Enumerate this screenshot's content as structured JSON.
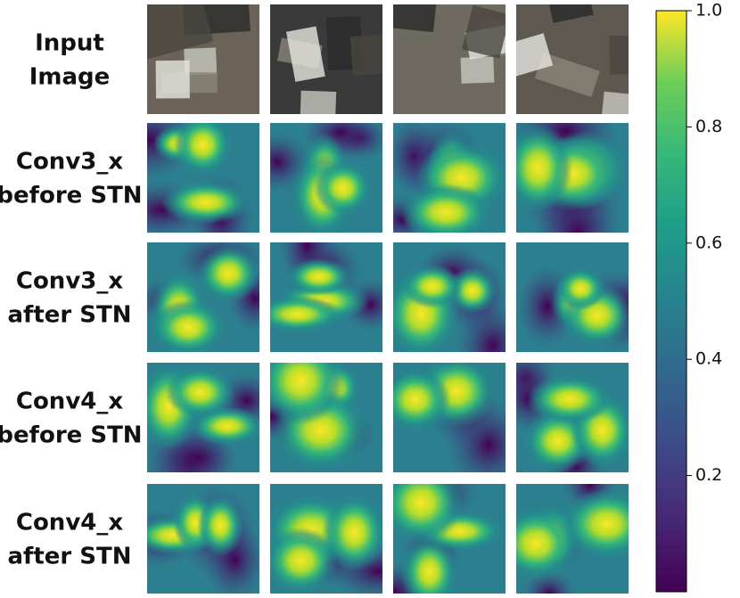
{
  "row_labels": [
    [
      "Input",
      "Image"
    ],
    [
      "Conv3_x",
      "before STN"
    ],
    [
      "Conv3_x",
      "after STN"
    ],
    [
      "Conv4_x",
      "before STN"
    ],
    [
      "Conv4_x",
      "after STN"
    ]
  ],
  "colorbar": {
    "lim": [
      0,
      1
    ],
    "ticks": [
      0.2,
      0.4,
      0.6,
      0.8,
      {
        "value": 1,
        "label": "1.0"
      }
    ]
  }
}
